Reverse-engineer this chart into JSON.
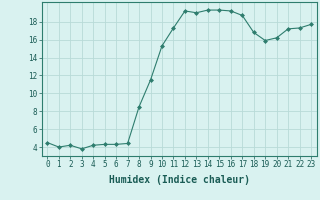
{
  "x": [
    0,
    1,
    2,
    3,
    4,
    5,
    6,
    7,
    8,
    9,
    10,
    11,
    12,
    13,
    14,
    15,
    16,
    17,
    18,
    19,
    20,
    21,
    22,
    23
  ],
  "y": [
    4.5,
    4.0,
    4.2,
    3.8,
    4.2,
    4.3,
    4.3,
    4.4,
    8.5,
    11.5,
    15.3,
    17.3,
    19.2,
    19.0,
    19.3,
    19.3,
    19.2,
    18.7,
    16.8,
    15.9,
    16.2,
    17.2,
    17.3,
    17.7
  ],
  "line_color": "#2e7d6e",
  "marker": "D",
  "marker_size": 2.0,
  "bg_color": "#d9f2f0",
  "grid_color": "#b8dbd8",
  "xlabel": "Humidex (Indice chaleur)",
  "xlabel_fontsize": 7,
  "tick_fontsize": 5.5,
  "ylim": [
    3.0,
    20.2
  ],
  "xlim": [
    -0.5,
    23.5
  ],
  "yticks": [
    4,
    6,
    8,
    10,
    12,
    14,
    16,
    18
  ],
  "xticks": [
    0,
    1,
    2,
    3,
    4,
    5,
    6,
    7,
    8,
    9,
    10,
    11,
    12,
    13,
    14,
    15,
    16,
    17,
    18,
    19,
    20,
    21,
    22,
    23
  ],
  "xtick_labels": [
    "0",
    "1",
    "2",
    "3",
    "4",
    "5",
    "6",
    "7",
    "8",
    "9",
    "10",
    "11",
    "12",
    "13",
    "14",
    "15",
    "16",
    "17",
    "18",
    "19",
    "20",
    "21",
    "22",
    "23"
  ]
}
